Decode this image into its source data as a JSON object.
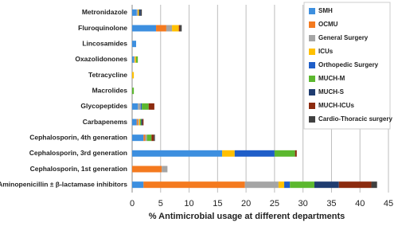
{
  "chart_data": {
    "type": "stacked-barh",
    "xlabel": "% Antimicrobial usage at different departments",
    "categories": [
      "Metronidazole",
      "Fluroquinolone",
      "Lincosamides",
      "Oxazolidonones",
      "Tetracycline",
      "Macrolides",
      "Glycopeptides",
      "Carbapenems",
      "Cephalosporin, 4th generation",
      "Cephalosporin, 3rd generation",
      "Cephalosporin, 1st generation",
      "Aminopenicillin ± β-lactamase inhibitors"
    ],
    "series": [
      {
        "name": "SMH",
        "color": "#3d8fdf",
        "values": [
          0.8,
          4.2,
          0.7,
          0.3,
          0,
          0,
          1,
          0.8,
          2,
          15.8,
          0,
          2
        ]
      },
      {
        "name": "OCMU",
        "color": "#f47a1f",
        "values": [
          0,
          1.8,
          0,
          0,
          0,
          0,
          0,
          0.2,
          0.3,
          0,
          5.2,
          17.8
        ]
      },
      {
        "name": "General Surgery",
        "color": "#a5a5a5",
        "values": [
          0.2,
          1,
          0,
          0.2,
          0,
          0,
          0.5,
          0.2,
          0.3,
          0,
          1,
          5.9
        ]
      },
      {
        "name": "ICUs",
        "color": "#ffc000",
        "values": [
          0.2,
          1.2,
          0,
          0.2,
          0.3,
          0,
          0,
          0.2,
          0,
          2.2,
          0,
          1
        ]
      },
      {
        "name": "Orthopedic Surgery",
        "color": "#1f5ec8",
        "values": [
          0,
          0,
          0,
          0,
          0,
          0,
          0.2,
          0,
          0,
          7,
          0,
          1
        ]
      },
      {
        "name": "MUCH-M",
        "color": "#5cb82f",
        "values": [
          0,
          0,
          0,
          0.3,
          0,
          0.3,
          1.2,
          0.2,
          0.8,
          3.6,
          0,
          4.3
        ]
      },
      {
        "name": "MUCH-S",
        "color": "#1f3c70",
        "values": [
          0.3,
          0,
          0,
          0,
          0,
          0,
          0,
          0.2,
          0,
          0,
          0,
          4.3
        ]
      },
      {
        "name": "MUCH-ICUs",
        "color": "#8c2b0f",
        "values": [
          0,
          0.2,
          0,
          0,
          0,
          0,
          1,
          0.2,
          0.4,
          0.3,
          0,
          5.7
        ]
      },
      {
        "name": "Cardio-Thoracic surgery",
        "color": "#404040",
        "values": [
          0.2,
          0.3,
          0,
          0,
          0,
          0,
          0,
          0,
          0.2,
          0,
          0,
          1
        ]
      }
    ],
    "xlim": [
      0,
      45
    ],
    "xticks": [
      0,
      5,
      10,
      15,
      20,
      25,
      30,
      35,
      40,
      45
    ],
    "grid": true,
    "legend": "upper right"
  }
}
